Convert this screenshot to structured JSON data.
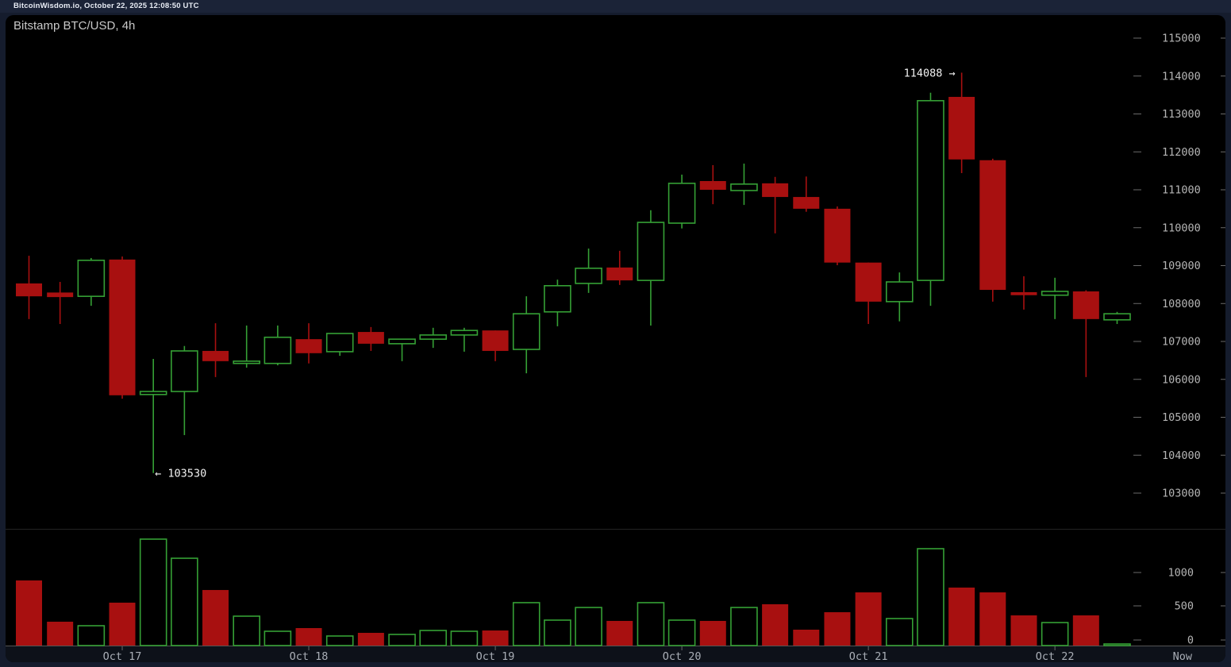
{
  "header": {
    "text": "BitcoinWisdom.io, October 22, 2025 12:08:50 UTC"
  },
  "chart": {
    "title": "Bitstamp BTC/USD, 4h"
  },
  "colors": {
    "up": "#35a035",
    "down": "#a81010",
    "panel_bg": "#000000",
    "page_bg": "#151c2d",
    "header_bg": "#1b2337",
    "strip_bg": "#0d1119",
    "tick_dash": "#6a6a6a",
    "axis_label": "#b4b4b4",
    "day_label": "#a9aeb6",
    "annotation": "#f2f2f2",
    "separator_top": "#242424",
    "separator_bottom": "#555555"
  },
  "chart_data": {
    "type": "candlestick",
    "title": "Bitstamp BTC/USD, 4h",
    "exchange": "Bitstamp",
    "pair": "BTC/USD",
    "interval": "4h",
    "legend_position": "none",
    "grid": false,
    "price_axis": {
      "min": 103000,
      "max": 115000,
      "tick_step": 1000,
      "tick_values": [
        115000,
        114000,
        113000,
        112000,
        111000,
        110000,
        109000,
        108000,
        107000,
        106000,
        105000,
        104000,
        103000
      ]
    },
    "volume_axis": {
      "tick_values": [
        1000,
        500,
        0
      ],
      "tick_labels": [
        "1000",
        "500",
        "0"
      ]
    },
    "x_axis": {
      "day_labels": [
        {
          "label": "Oct 17",
          "candle_index": 3
        },
        {
          "label": "Oct 18",
          "candle_index": 9
        },
        {
          "label": "Oct 19",
          "candle_index": 15
        },
        {
          "label": "Oct 20",
          "candle_index": 21
        },
        {
          "label": "Oct 21",
          "candle_index": 27
        },
        {
          "label": "Oct 22",
          "candle_index": 33
        }
      ],
      "now_label": "Now"
    },
    "annotations": {
      "high": {
        "text": "114088 →",
        "value": 114088,
        "candle_index": 30
      },
      "low": {
        "text": "← 103530",
        "value": 103530,
        "candle_index": 4
      }
    },
    "candles_columns": [
      "open",
      "high",
      "low",
      "close",
      "volume"
    ],
    "candles": [
      [
        108530,
        109260,
        107590,
        108190,
        906
      ],
      [
        108290,
        108570,
        107460,
        108170,
        332
      ],
      [
        108190,
        109200,
        107940,
        109140,
        276
      ],
      [
        109160,
        109240,
        105490,
        105580,
        597
      ],
      [
        105600,
        106540,
        103530,
        105680,
        1481
      ],
      [
        105680,
        106880,
        104530,
        106750,
        1215
      ],
      [
        106750,
        107480,
        106060,
        106480,
        773
      ],
      [
        106420,
        107420,
        106310,
        106480,
        409
      ],
      [
        106420,
        107420,
        106370,
        107110,
        199
      ],
      [
        107060,
        107480,
        106420,
        106690,
        243
      ],
      [
        106730,
        107210,
        106620,
        107210,
        133
      ],
      [
        107250,
        107380,
        106750,
        106940,
        177
      ],
      [
        106940,
        107060,
        106480,
        107060,
        155
      ],
      [
        107060,
        107360,
        106830,
        107170,
        210
      ],
      [
        107170,
        107360,
        106730,
        107290,
        199
      ],
      [
        107290,
        107290,
        106480,
        106750,
        210
      ],
      [
        106790,
        108190,
        106160,
        107730,
        597
      ],
      [
        107780,
        108630,
        107400,
        108470,
        354
      ],
      [
        108530,
        109450,
        108280,
        108930,
        530
      ],
      [
        108950,
        109390,
        108490,
        108610,
        343
      ],
      [
        108610,
        110460,
        107420,
        110140,
        597
      ],
      [
        110120,
        111400,
        109980,
        111170,
        354
      ],
      [
        111230,
        111650,
        110620,
        111000,
        343
      ],
      [
        110980,
        111690,
        110600,
        111150,
        530
      ],
      [
        111170,
        111340,
        109850,
        110810,
        575
      ],
      [
        110810,
        111350,
        110420,
        110500,
        221
      ],
      [
        110500,
        110560,
        109010,
        109080,
        464
      ],
      [
        109080,
        109080,
        107460,
        108050,
        740
      ],
      [
        108050,
        108820,
        107530,
        108570,
        376
      ],
      [
        108610,
        113560,
        107940,
        113350,
        1348
      ],
      [
        113450,
        114088,
        111440,
        111800,
        807
      ],
      [
        111780,
        111820,
        108050,
        108360,
        740
      ],
      [
        108300,
        108720,
        107840,
        108220,
        420
      ],
      [
        108220,
        108680,
        107590,
        108320,
        320
      ],
      [
        108320,
        108350,
        106060,
        107590,
        420
      ],
      [
        107570,
        107780,
        107460,
        107730,
        22
      ]
    ]
  }
}
